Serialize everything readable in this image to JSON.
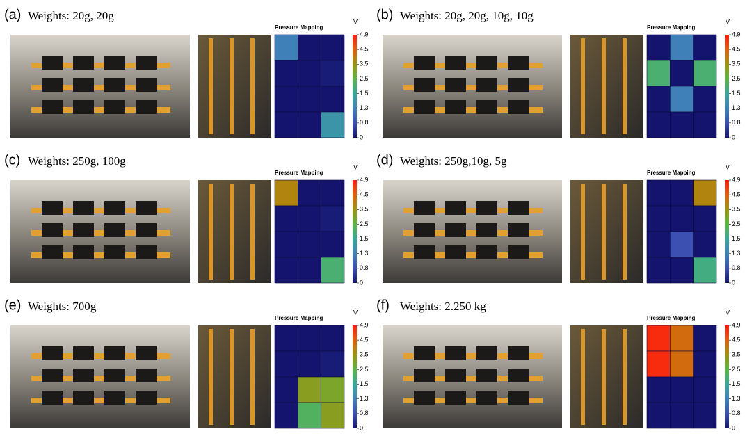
{
  "panels": [
    {
      "label": "(a)",
      "title": "Weights: 20g, 20g",
      "values": [
        [
          1.3,
          0,
          0
        ],
        [
          0,
          0,
          0.1
        ],
        [
          0,
          0,
          0
        ],
        [
          0,
          0,
          1.4
        ]
      ]
    },
    {
      "label": "(b)",
      "title": "Weights: 20g, 20g, 10g, 10g",
      "values": [
        [
          0,
          1.3,
          0
        ],
        [
          2.0,
          0,
          2.0
        ],
        [
          0,
          1.3,
          0
        ],
        [
          0,
          0,
          0
        ]
      ]
    },
    {
      "label": "(c)",
      "title": "Weights: 250g, 100g",
      "values": [
        [
          3.8,
          0,
          0
        ],
        [
          0,
          0,
          0.1
        ],
        [
          0,
          0,
          0
        ],
        [
          0,
          0,
          2.0
        ]
      ]
    },
    {
      "label": "(d)",
      "title": "Weights: 250g,10g, 5g",
      "values": [
        [
          0,
          0,
          3.8
        ],
        [
          0,
          0,
          0
        ],
        [
          0,
          0.8,
          0
        ],
        [
          0,
          0,
          1.8
        ]
      ]
    },
    {
      "label": "(e)",
      "title": "Weights: 700g",
      "values": [
        [
          0,
          0,
          0
        ],
        [
          0,
          0,
          0.1
        ],
        [
          0,
          3.2,
          3.0
        ],
        [
          0,
          2.2,
          3.2
        ]
      ]
    },
    {
      "label": "(f)",
      "title": "Weights: 2.250 kg",
      "values": [
        [
          4.8,
          4.3,
          0
        ],
        [
          4.8,
          4.3,
          0
        ],
        [
          0,
          0,
          0
        ],
        [
          0,
          0,
          0
        ]
      ]
    }
  ],
  "heatmap_title": "Pressure Mapping",
  "unit": "V",
  "colorbar": {
    "ticks": [
      4.9,
      4.5,
      3.5,
      2.5,
      1.5,
      1.3,
      0.8,
      0
    ],
    "colors": [
      "#ff1a10",
      "#e0600e",
      "#9c9410",
      "#5bb545",
      "#38a89a",
      "#3f80b8",
      "#3b50b0",
      "#14146e"
    ]
  }
}
